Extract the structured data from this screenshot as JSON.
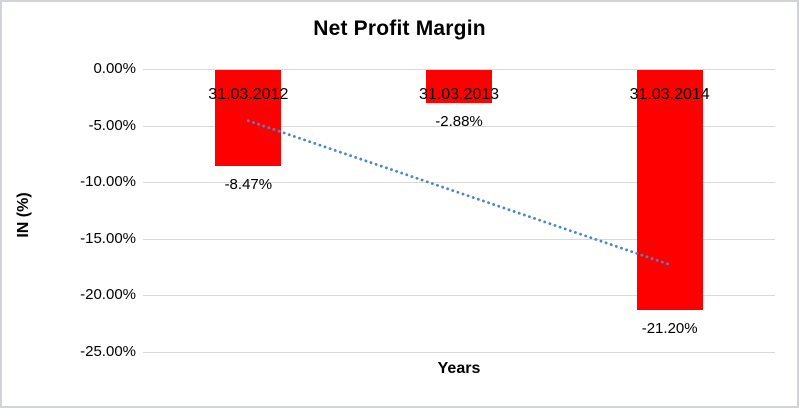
{
  "chart_data": {
    "type": "bar",
    "title": "Net Profit Margin",
    "xlabel": "Years",
    "ylabel": "IN (%)",
    "categories": [
      "31.03.2012",
      "31.03.2013",
      "31.03.2014"
    ],
    "values": [
      -8.47,
      -2.88,
      -21.2
    ],
    "data_labels": [
      "-8.47%",
      "-2.88%",
      "-21.20%"
    ],
    "ylim": [
      -25,
      0
    ],
    "y_ticks": [
      {
        "value": 0,
        "label": "0.00%"
      },
      {
        "value": -5,
        "label": "-5.00%"
      },
      {
        "value": -10,
        "label": "-10.00%"
      },
      {
        "value": -15,
        "label": "-15.00%"
      },
      {
        "value": -20,
        "label": "-20.00%"
      },
      {
        "value": -25,
        "label": "-25.00%"
      }
    ],
    "grid": true,
    "legend_position": "none",
    "bar_color": "#ff0000",
    "gridline_color": "#d9d9d9",
    "text_color": "#000000",
    "trendline": {
      "type": "linear",
      "style": "dotted",
      "color": "#4a86c8",
      "start_value": -4.49,
      "end_value": -17.22
    }
  }
}
